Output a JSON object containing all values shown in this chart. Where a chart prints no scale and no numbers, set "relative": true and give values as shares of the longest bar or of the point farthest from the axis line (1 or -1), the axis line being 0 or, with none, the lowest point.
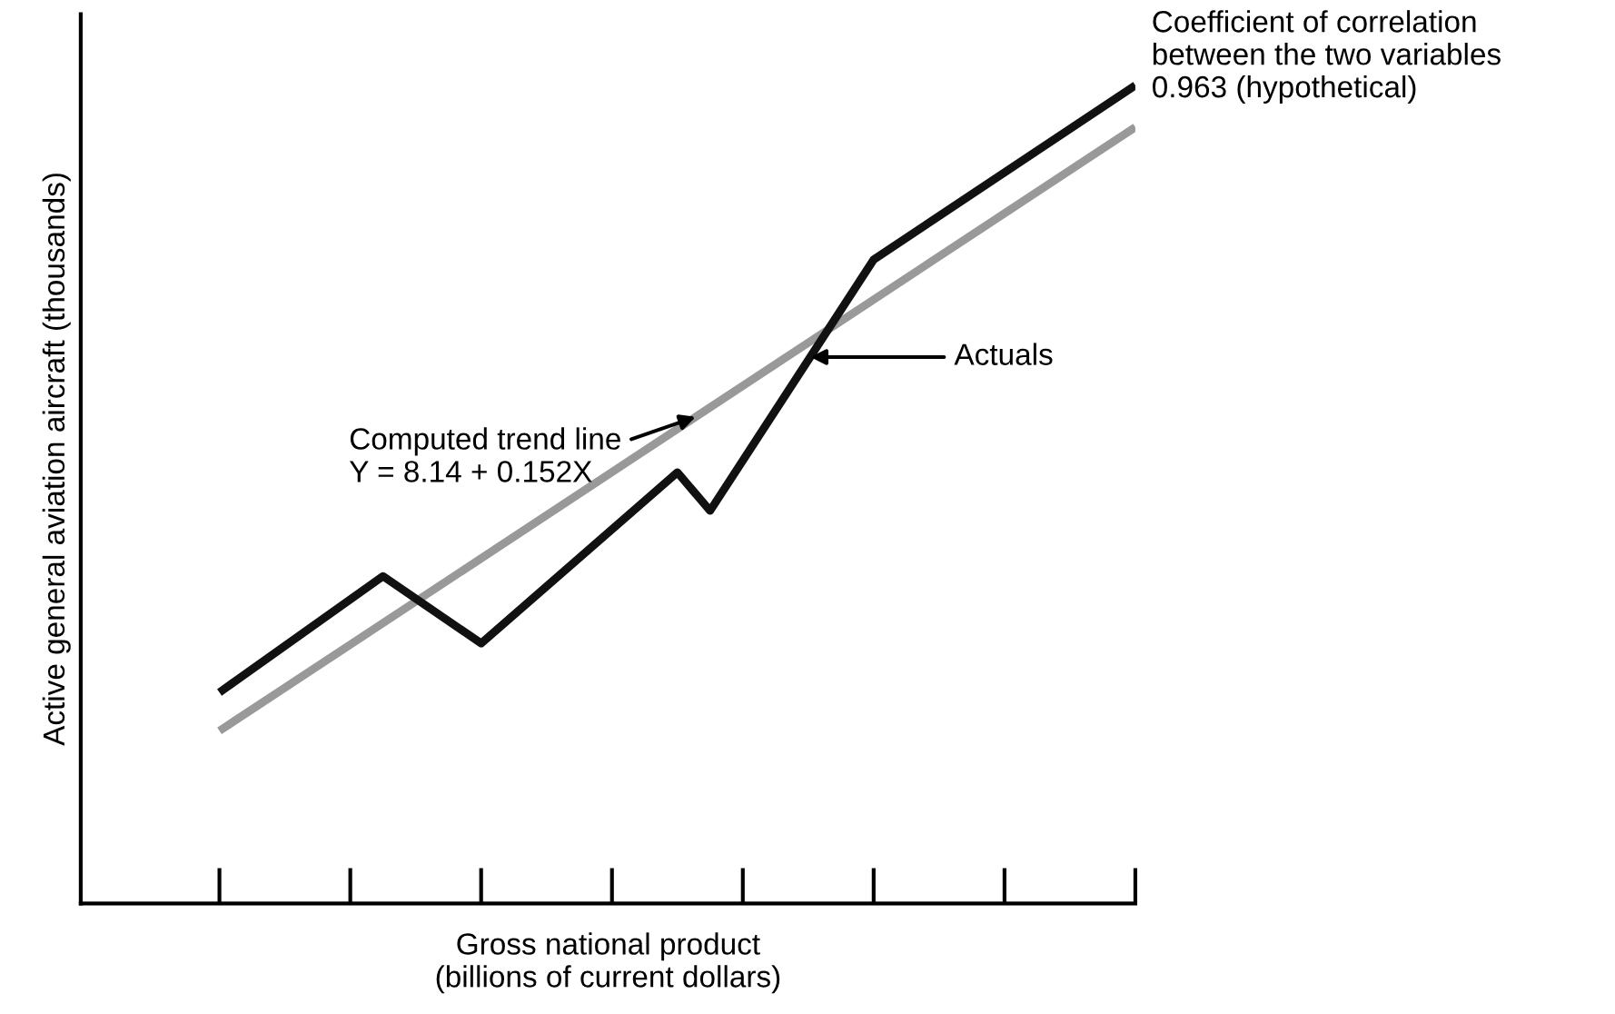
{
  "chart_data": {
    "type": "line",
    "relative": true,
    "xlabel": "Gross national product\n(billions of current dollars)",
    "ylabel": "Active general aviation aircraft (thousands)",
    "categories": [
      null,
      null,
      null,
      null,
      null,
      null,
      null,
      null,
      null,
      null,
      null,
      null,
      null,
      null,
      null,
      null,
      null,
      null,
      null,
      null,
      null,
      null,
      null,
      null,
      null,
      null,
      null,
      null,
      null
    ],
    "series": [
      {
        "color": "#999999",
        "values": [
          0.211,
          null,
          null,
          null,
          null,
          null,
          null,
          null,
          null,
          null,
          null,
          null,
          null,
          null,
          null,
          null,
          null,
          null,
          null,
          null,
          null,
          null,
          null,
          null,
          null,
          null,
          null,
          null,
          0.949
        ]
      },
      {
        "color": "#111111",
        "values": [
          0.258,
          null,
          null,
          null,
          null,
          0.4,
          null,
          null,
          0.318,
          null,
          null,
          null,
          null,
          null,
          0.527,
          0.48,
          null,
          null,
          null,
          null,
          0.787,
          null,
          null,
          null,
          null,
          null,
          null,
          null,
          1
        ]
      }
    ],
    "annotations": [
      "Computed trend line\nY = 8.14 + 0.152X",
      "Actuals",
      "Coefficient of correlation\nbetween the two variables\n0.963 (hypothetical)"
    ],
    "grid": false,
    "legend": false,
    "marker": "none",
    "line_style": "solid"
  }
}
